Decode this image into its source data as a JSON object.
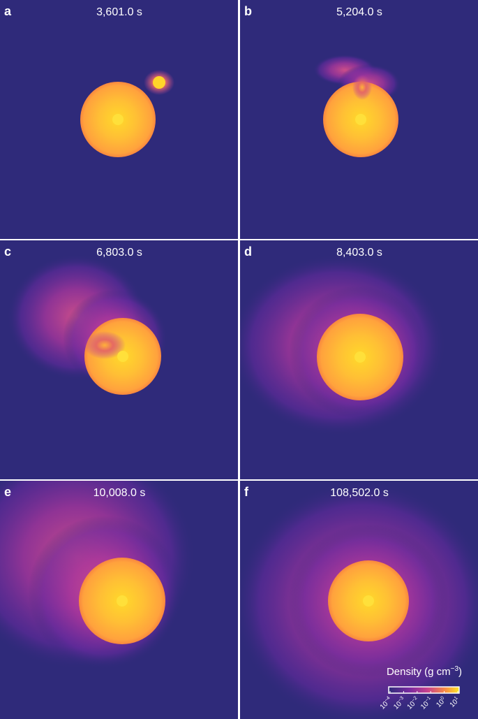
{
  "panels": [
    {
      "label": "a",
      "time": "3,601.0 s"
    },
    {
      "label": "b",
      "time": "5,204.0 s"
    },
    {
      "label": "c",
      "time": "6,803.0 s"
    },
    {
      "label": "d",
      "time": "8,403.0 s"
    },
    {
      "label": "e",
      "time": "10,008.0 s"
    },
    {
      "label": "f",
      "time": "108,502.0 s"
    }
  ],
  "colorbar": {
    "title": {
      "text": "Density (g cm",
      "superscript": "−3",
      "closing": ")"
    },
    "clim": [
      -4,
      1
    ],
    "ticks": [
      {
        "value": -4,
        "base": "10",
        "exponent": "−4"
      },
      {
        "value": -3,
        "base": "10",
        "exponent": "−3"
      },
      {
        "value": -2,
        "base": "10",
        "exponent": "−2"
      },
      {
        "value": -1,
        "base": "10",
        "exponent": "−1"
      },
      {
        "value": 0,
        "base": "10",
        "exponent": "0"
      },
      {
        "value": 1,
        "base": "10",
        "exponent": "1"
      }
    ]
  }
}
